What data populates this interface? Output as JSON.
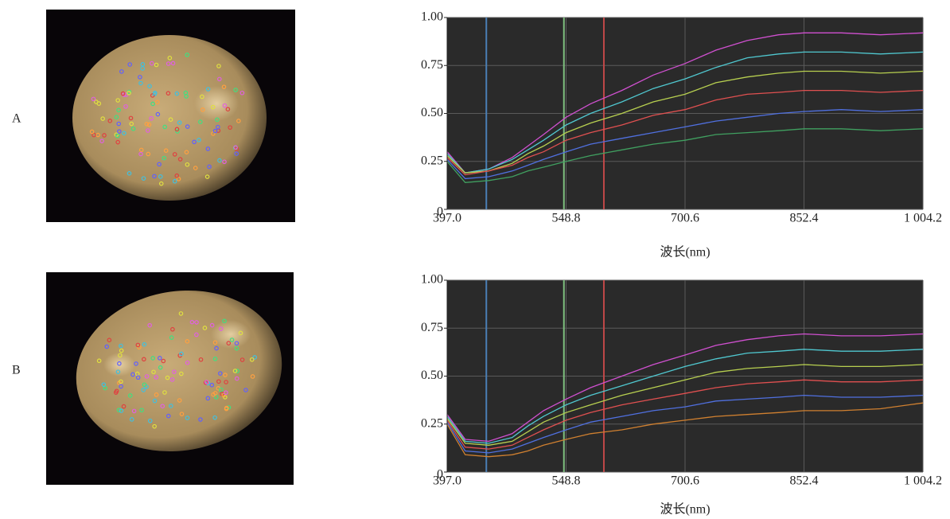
{
  "chart_data": [
    {
      "type": "line",
      "label": "A",
      "xlabel": "波长(nm)",
      "x": [
        397,
        420,
        450,
        480,
        500,
        520,
        548.8,
        580,
        620,
        660,
        700.6,
        740,
        780,
        820,
        852.4,
        900,
        950,
        1004.2
      ],
      "xlim": [
        397,
        1004.2
      ],
      "xticks": [
        {
          "value": 397,
          "label": "397.0"
        },
        {
          "value": 548.8,
          "label": "548.8"
        },
        {
          "value": 700.6,
          "label": "700.6"
        },
        {
          "value": 852.4,
          "label": "852.4"
        },
        {
          "value": 1004.2,
          "label": "1 004.2"
        }
      ],
      "ylim": [
        0,
        1
      ],
      "yticks": [
        0,
        {
          "value": 0.25,
          "label": "0.25"
        },
        {
          "value": 0.5,
          "label": "0.50"
        },
        {
          "value": 0.75,
          "label": "0.75"
        },
        {
          "value": 1,
          "label": "1.00"
        }
      ],
      "grid": true,
      "bands": [
        {
          "value": 447,
          "color": "#4a7fb5"
        },
        {
          "value": 546,
          "color": "#7fc07f"
        },
        {
          "value": 597,
          "color": "#c04848"
        }
      ],
      "series": [
        {
          "color": "#d050d0",
          "values": [
            0.3,
            0.19,
            0.21,
            0.27,
            0.33,
            0.39,
            0.48,
            0.55,
            0.62,
            0.7,
            0.76,
            0.83,
            0.88,
            0.91,
            0.92,
            0.92,
            0.91,
            0.92
          ]
        },
        {
          "color": "#50c8d0",
          "values": [
            0.29,
            0.19,
            0.21,
            0.26,
            0.31,
            0.36,
            0.44,
            0.5,
            0.56,
            0.63,
            0.68,
            0.74,
            0.79,
            0.81,
            0.82,
            0.82,
            0.81,
            0.82
          ]
        },
        {
          "color": "#b8d050",
          "values": [
            0.28,
            0.19,
            0.2,
            0.24,
            0.29,
            0.33,
            0.4,
            0.45,
            0.5,
            0.56,
            0.6,
            0.66,
            0.69,
            0.71,
            0.72,
            0.72,
            0.71,
            0.72
          ]
        },
        {
          "color": "#e05050",
          "values": [
            0.27,
            0.18,
            0.2,
            0.23,
            0.27,
            0.3,
            0.36,
            0.4,
            0.44,
            0.49,
            0.52,
            0.57,
            0.6,
            0.61,
            0.62,
            0.62,
            0.61,
            0.62
          ]
        },
        {
          "color": "#5070e0",
          "values": [
            0.26,
            0.16,
            0.17,
            0.2,
            0.23,
            0.26,
            0.3,
            0.34,
            0.37,
            0.4,
            0.43,
            0.46,
            0.48,
            0.5,
            0.51,
            0.52,
            0.51,
            0.52
          ]
        },
        {
          "color": "#40a060",
          "values": [
            0.25,
            0.14,
            0.15,
            0.17,
            0.2,
            0.22,
            0.25,
            0.28,
            0.31,
            0.34,
            0.36,
            0.39,
            0.4,
            0.41,
            0.42,
            0.42,
            0.41,
            0.42
          ]
        }
      ]
    },
    {
      "type": "line",
      "label": "B",
      "xlabel": "波长(nm)",
      "x": [
        397,
        420,
        450,
        480,
        500,
        520,
        548.8,
        580,
        620,
        660,
        700.6,
        740,
        780,
        820,
        852.4,
        900,
        950,
        1004.2
      ],
      "xlim": [
        397,
        1004.2
      ],
      "xticks": [
        {
          "value": 397,
          "label": "397.0"
        },
        {
          "value": 548.8,
          "label": "548.8"
        },
        {
          "value": 700.6,
          "label": "700.6"
        },
        {
          "value": 852.4,
          "label": "852.4"
        },
        {
          "value": 1004.2,
          "label": "1 004.2"
        }
      ],
      "ylim": [
        0,
        1
      ],
      "yticks": [
        0,
        {
          "value": 0.25,
          "label": "0.25"
        },
        {
          "value": 0.5,
          "label": "0.50"
        },
        {
          "value": 0.75,
          "label": "0.75"
        },
        {
          "value": 1,
          "label": "1.00"
        }
      ],
      "grid": true,
      "bands": [
        {
          "value": 447,
          "color": "#4a7fb5"
        },
        {
          "value": 546,
          "color": "#7fc07f"
        },
        {
          "value": 597,
          "color": "#c04848"
        }
      ],
      "series": [
        {
          "color": "#d050d0",
          "values": [
            0.3,
            0.17,
            0.16,
            0.2,
            0.26,
            0.32,
            0.38,
            0.44,
            0.5,
            0.56,
            0.61,
            0.66,
            0.69,
            0.71,
            0.72,
            0.71,
            0.71,
            0.72
          ]
        },
        {
          "color": "#50c8d0",
          "values": [
            0.29,
            0.16,
            0.15,
            0.18,
            0.24,
            0.29,
            0.35,
            0.4,
            0.45,
            0.5,
            0.55,
            0.59,
            0.62,
            0.63,
            0.64,
            0.63,
            0.63,
            0.64
          ]
        },
        {
          "color": "#b8d050",
          "values": [
            0.28,
            0.15,
            0.14,
            0.16,
            0.21,
            0.26,
            0.31,
            0.35,
            0.4,
            0.44,
            0.48,
            0.52,
            0.54,
            0.55,
            0.56,
            0.55,
            0.55,
            0.56
          ]
        },
        {
          "color": "#e05050",
          "values": [
            0.27,
            0.13,
            0.12,
            0.14,
            0.18,
            0.22,
            0.27,
            0.31,
            0.35,
            0.38,
            0.41,
            0.44,
            0.46,
            0.47,
            0.48,
            0.47,
            0.47,
            0.48
          ]
        },
        {
          "color": "#5070e0",
          "values": [
            0.26,
            0.11,
            0.1,
            0.12,
            0.15,
            0.18,
            0.22,
            0.26,
            0.29,
            0.32,
            0.34,
            0.37,
            0.38,
            0.39,
            0.4,
            0.39,
            0.39,
            0.4
          ]
        },
        {
          "color": "#d08030",
          "values": [
            0.25,
            0.09,
            0.08,
            0.09,
            0.11,
            0.14,
            0.17,
            0.2,
            0.22,
            0.25,
            0.27,
            0.29,
            0.3,
            0.31,
            0.32,
            0.32,
            0.33,
            0.36
          ]
        }
      ]
    }
  ]
}
